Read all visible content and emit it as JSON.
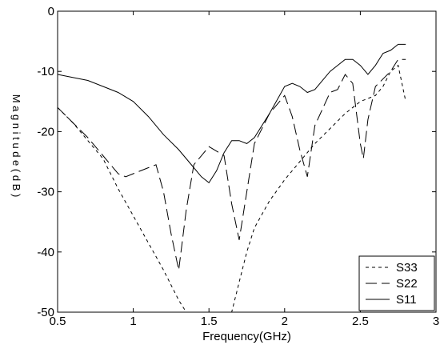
{
  "chart_data": {
    "type": "line",
    "xlabel": "Frequency(GHz)",
    "ylabel": "Magnitude(dB)",
    "ylabel_visible": "M a g n i t u d e ( d B )",
    "xlim": [
      0.5,
      3
    ],
    "ylim": [
      -50,
      0
    ],
    "x_ticks": [
      0.5,
      1,
      1.5,
      2,
      2.5,
      3
    ],
    "x_tick_labels": [
      "0.5",
      "1",
      "1.5",
      "2",
      "2.5",
      "3"
    ],
    "y_ticks": [
      -50,
      -40,
      -30,
      -20,
      -10,
      0
    ],
    "y_tick_labels": [
      "-50",
      "-40",
      "-30",
      "-20",
      "-10",
      "0"
    ],
    "grid": false,
    "legend_position": "bottom-right",
    "series": [
      {
        "name": "S33",
        "style": "short-dash",
        "x": [
          0.5,
          0.6,
          0.7,
          0.8,
          0.9,
          1.0,
          1.1,
          1.2,
          1.3,
          1.35,
          1.38,
          1.45,
          1.5,
          1.55,
          1.6,
          1.65,
          1.7,
          1.75,
          1.8,
          1.9,
          2.0,
          2.1,
          2.2,
          2.3,
          2.4,
          2.5,
          2.6,
          2.65,
          2.7,
          2.75,
          2.8
        ],
        "y": [
          -16,
          -18.5,
          -21.5,
          -24.5,
          -29.5,
          -34,
          -38.5,
          -43,
          -48,
          -50,
          -50,
          -50,
          -50,
          -50,
          -50,
          -50,
          -45,
          -40,
          -36,
          -31.5,
          -28,
          -25,
          -22,
          -19.5,
          -17,
          -15,
          -14,
          -12.5,
          -10,
          -9,
          -15
        ]
      },
      {
        "name": "S22",
        "style": "long-dash",
        "x": [
          0.5,
          0.6,
          0.7,
          0.8,
          0.9,
          0.95,
          1.0,
          1.1,
          1.15,
          1.2,
          1.25,
          1.3,
          1.35,
          1.4,
          1.5,
          1.6,
          1.65,
          1.7,
          1.75,
          1.8,
          1.9,
          2.0,
          2.05,
          2.1,
          2.15,
          2.2,
          2.3,
          2.35,
          2.4,
          2.45,
          2.5,
          2.52,
          2.55,
          2.6,
          2.7,
          2.75,
          2.8
        ],
        "y": [
          -16,
          -18.5,
          -21,
          -24,
          -27,
          -27.5,
          -27,
          -26,
          -25.5,
          -30,
          -37,
          -43,
          -33,
          -25.5,
          -22.5,
          -24,
          -32,
          -38,
          -30,
          -22,
          -17,
          -14,
          -17.5,
          -23,
          -27.5,
          -19,
          -13.5,
          -13,
          -10.5,
          -12,
          -22,
          -24.5,
          -18,
          -12.5,
          -10,
          -8,
          -8
        ]
      },
      {
        "name": "S11",
        "style": "solid",
        "x": [
          0.5,
          0.6,
          0.7,
          0.8,
          0.9,
          1.0,
          1.1,
          1.2,
          1.3,
          1.4,
          1.45,
          1.5,
          1.55,
          1.6,
          1.65,
          1.7,
          1.75,
          1.8,
          1.9,
          2.0,
          2.05,
          2.1,
          2.15,
          2.2,
          2.3,
          2.4,
          2.45,
          2.5,
          2.55,
          2.6,
          2.65,
          2.7,
          2.75,
          2.8
        ],
        "y": [
          -10.5,
          -11,
          -11.5,
          -12.5,
          -13.5,
          -15,
          -17.5,
          -20.5,
          -23,
          -26,
          -27.5,
          -28.5,
          -26.5,
          -23.5,
          -21.5,
          -21.5,
          -22,
          -21,
          -17,
          -12.5,
          -12,
          -12.5,
          -13.5,
          -13,
          -10,
          -8,
          -8,
          -9,
          -10.5,
          -9,
          -7,
          -6.5,
          -5.5,
          -5.5
        ]
      }
    ]
  }
}
